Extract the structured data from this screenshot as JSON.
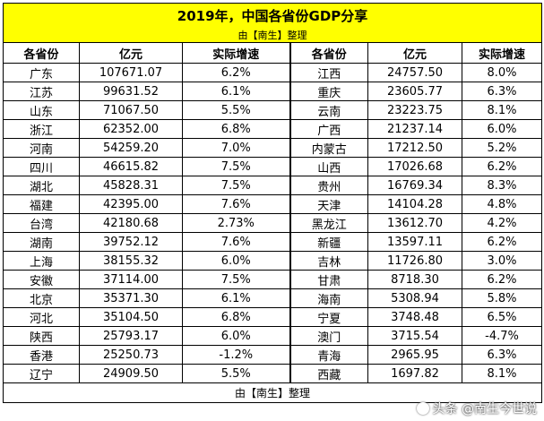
{
  "title": "2019年，中国各省份GDP分享",
  "subtitle": "由【南生】整理",
  "headers": [
    "各省份",
    "亿元",
    "实际增速",
    "各省份",
    "亿元",
    "实际增速"
  ],
  "left_rows": [
    [
      "广东",
      "107671.07",
      "6.2%"
    ],
    [
      "江苏",
      "99631.52",
      "6.1%"
    ],
    [
      "山东",
      "71067.50",
      "5.5%"
    ],
    [
      "浙江",
      "62352.00",
      "6.8%"
    ],
    [
      "河南",
      "54259.20",
      "7.0%"
    ],
    [
      "四川",
      "46615.82",
      "7.5%"
    ],
    [
      "湖北",
      "45828.31",
      "7.5%"
    ],
    [
      "福建",
      "42395.00",
      "7.6%"
    ],
    [
      "台湾",
      "42180.68",
      "2.73%"
    ],
    [
      "湖南",
      "39752.12",
      "7.6%"
    ],
    [
      "上海",
      "38155.32",
      "6.0%"
    ],
    [
      "安徽",
      "37114.00",
      "7.5%"
    ],
    [
      "北京",
      "35371.30",
      "6.1%"
    ],
    [
      "河北",
      "35104.50",
      "6.8%"
    ],
    [
      "陕西",
      "25793.17",
      "6.0%"
    ],
    [
      "香港",
      "25250.73",
      "-1.2%"
    ],
    [
      "辽宁",
      "24909.50",
      "5.5%"
    ]
  ],
  "right_rows": [
    [
      "江西",
      "24757.50",
      "8.0%"
    ],
    [
      "重庆",
      "23605.77",
      "6.3%"
    ],
    [
      "云南",
      "23223.75",
      "8.1%"
    ],
    [
      "广西",
      "21237.14",
      "6.0%"
    ],
    [
      "内蒙古",
      "17212.50",
      "5.2%"
    ],
    [
      "山西",
      "17026.68",
      "6.2%"
    ],
    [
      "贵州",
      "16769.34",
      "8.3%"
    ],
    [
      "天津",
      "14104.28",
      "4.8%"
    ],
    [
      "黑龙江",
      "13612.70",
      "4.2%"
    ],
    [
      "新疆",
      "13597.11",
      "6.2%"
    ],
    [
      "吉林",
      "11726.80",
      "3.0%"
    ],
    [
      "甘肃",
      "8718.30",
      "6.2%"
    ],
    [
      "海南",
      "5308.94",
      "5.8%"
    ],
    [
      "宁夏",
      "3748.48",
      "6.5%"
    ],
    [
      "澳门",
      "3715.54",
      "-4.7%"
    ],
    [
      "青海",
      "2965.95",
      "6.3%"
    ],
    [
      "西藏",
      "1697.82",
      "8.1%"
    ]
  ],
  "footer": "由【南生】整理",
  "watermark": "头条 @南生今世说",
  "colors": {
    "title_bg": "#ffff00",
    "border": "#000000"
  }
}
